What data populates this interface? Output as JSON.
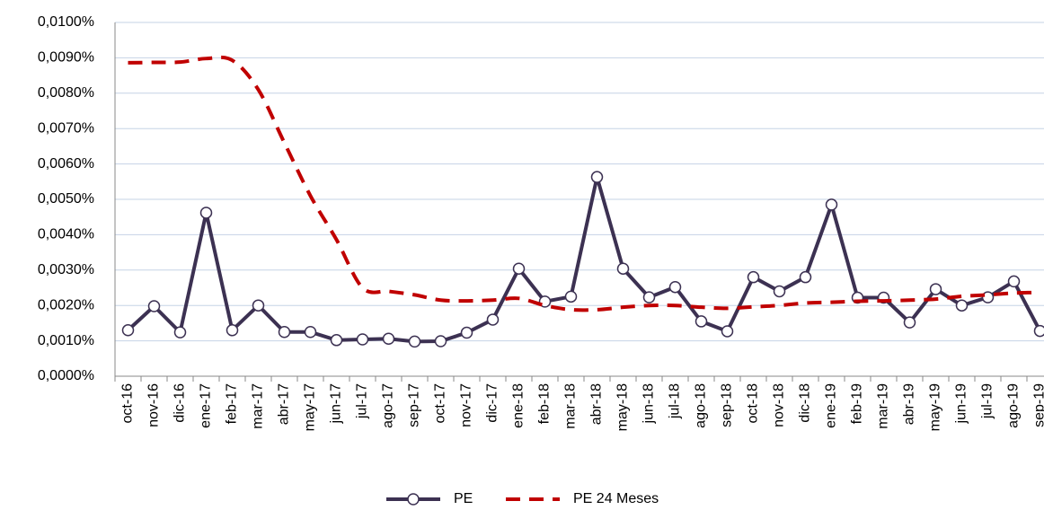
{
  "chart_data": {
    "type": "line",
    "categories": [
      "oct-16",
      "nov-16",
      "dic-16",
      "ene-17",
      "feb-17",
      "mar-17",
      "abr-17",
      "may-17",
      "jun-17",
      "jul-17",
      "ago-17",
      "sep-17",
      "oct-17",
      "nov-17",
      "dic-17",
      "ene-18",
      "feb-18",
      "mar-18",
      "abr-18",
      "may-18",
      "jun-18",
      "jul-18",
      "ago-18",
      "sep-18",
      "oct-18",
      "nov-18",
      "dic-18",
      "ene-19",
      "feb-19",
      "mar-19",
      "abr-19",
      "may-19",
      "jun-19",
      "jul-19",
      "ago-19",
      "sep-19"
    ],
    "series": [
      {
        "name": "PE",
        "color": "#3c3152",
        "marker": true,
        "dashed": false,
        "values": [
          0.0013,
          0.00198,
          0.00124,
          0.00462,
          0.0013,
          0.002,
          0.00125,
          0.00125,
          0.00102,
          0.00104,
          0.00106,
          0.00098,
          0.00099,
          0.00123,
          0.0016,
          0.00304,
          0.00211,
          0.00225,
          0.00563,
          0.00304,
          0.00223,
          0.00252,
          0.00155,
          0.00127,
          0.0028,
          0.0024,
          0.0028,
          0.00485,
          0.00222,
          0.00222,
          0.00152,
          0.00246,
          0.002,
          0.00223,
          0.00268,
          0.00128
        ]
      },
      {
        "name": "PE 24 Meses",
        "color": "#c00000",
        "marker": false,
        "dashed": true,
        "values": [
          0.00886,
          0.00887,
          0.00888,
          0.00898,
          0.00893,
          0.0081,
          0.0066,
          0.0051,
          0.00386,
          0.0025,
          0.0024,
          0.0023,
          0.00215,
          0.00213,
          0.00215,
          0.0022,
          0.002,
          0.00188,
          0.00188,
          0.00195,
          0.002,
          0.002,
          0.00195,
          0.00192,
          0.00196,
          0.002,
          0.00207,
          0.00209,
          0.00212,
          0.00213,
          0.00215,
          0.00218,
          0.00226,
          0.0023,
          0.00235,
          0.00237
        ]
      }
    ],
    "ylim": [
      0,
      0.01
    ],
    "yticks": [
      {
        "value": 0,
        "label": "0,0000%"
      },
      {
        "value": 0.001,
        "label": "0,0010%"
      },
      {
        "value": 0.002,
        "label": "0,0020%"
      },
      {
        "value": 0.003,
        "label": "0,0030%"
      },
      {
        "value": 0.004,
        "label": "0,0040%"
      },
      {
        "value": 0.005,
        "label": "0,0050%"
      },
      {
        "value": 0.006,
        "label": "0,0060%"
      },
      {
        "value": 0.007,
        "label": "0,0070%"
      },
      {
        "value": 0.008,
        "label": "0,0080%"
      },
      {
        "value": 0.009,
        "label": "0,0090%"
      },
      {
        "value": 0.01,
        "label": "0,0100%"
      }
    ],
    "grid": true,
    "legend": "bottom"
  }
}
